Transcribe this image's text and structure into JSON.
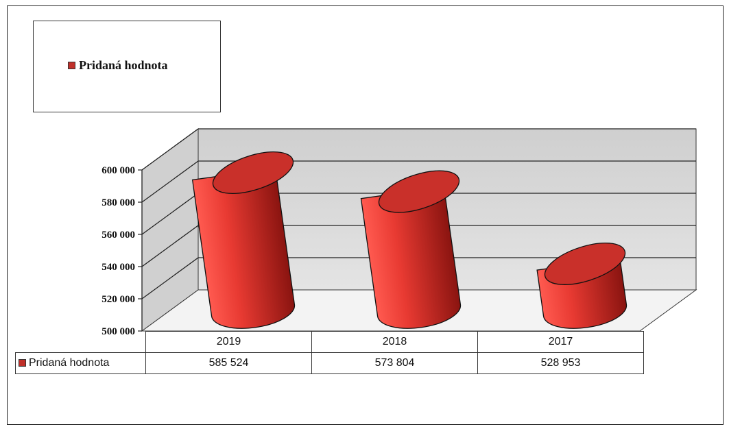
{
  "chart_data": {
    "type": "bar",
    "style": "3d-cylinder",
    "categories": [
      "2019",
      "2018",
      "2017"
    ],
    "series": [
      {
        "name": "Pridaná hodnota",
        "values": [
          585524,
          573804,
          528953
        ],
        "value_labels": [
          "585 524",
          "573 804",
          "528 953"
        ]
      }
    ],
    "yaxis": {
      "min": 500000,
      "max": 600000,
      "ticks": [
        500000,
        520000,
        540000,
        560000,
        580000,
        600000
      ],
      "tick_labels": [
        "500 000",
        "520 000",
        "540 000",
        "560 000",
        "580 000",
        "600 000"
      ]
    },
    "legend": {
      "position": "top-left",
      "entries": [
        "Pridaná hodnota"
      ]
    },
    "data_table": true,
    "gridlines": true,
    "colors": {
      "bar": "#e0403a",
      "bar_dark": "#8a1410",
      "top": "#c9302a",
      "walls": "#d0d0d0",
      "floor": "#f3f3f3"
    }
  }
}
